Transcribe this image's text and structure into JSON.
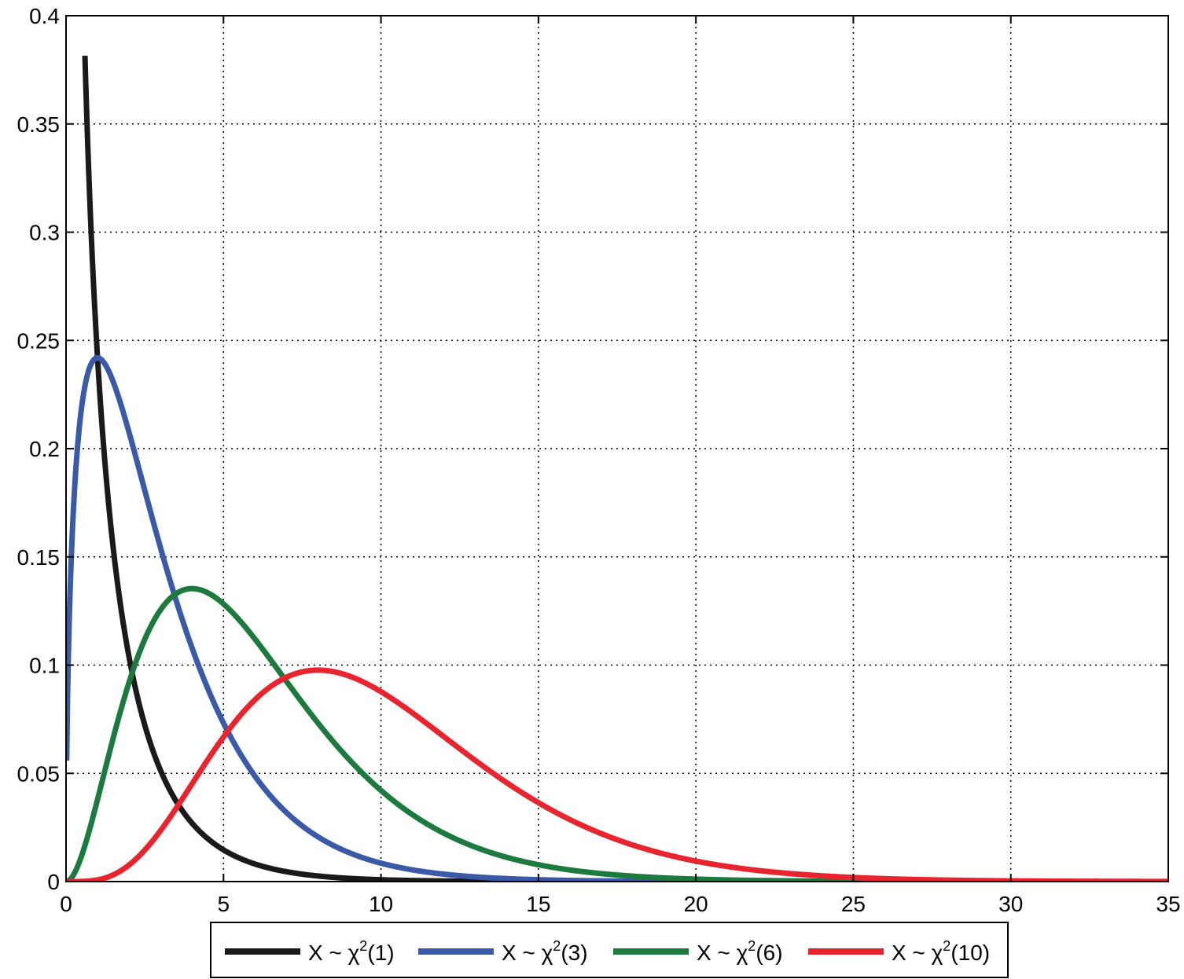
{
  "chart_data": {
    "type": "line",
    "xlim": [
      0,
      35
    ],
    "ylim": [
      0,
      0.4
    ],
    "grid": true,
    "legend_position": "bottom-outside",
    "x_ticks": [
      "0",
      "5",
      "10",
      "15",
      "20",
      "25",
      "30",
      "35"
    ],
    "y_ticks": [
      "0",
      "0.05",
      "0.1",
      "0.15",
      "0.2",
      "0.25",
      "0.3",
      "0.35",
      "0.4"
    ],
    "series": [
      {
        "name": "X ~ χ²(1)",
        "label_prefix": "X ~ χ",
        "label_sup": "2",
        "label_suffix": "(1)",
        "k": 1,
        "color": "#1a1a1a",
        "x": [
          0.65,
          0.8,
          1,
          1.5,
          2,
          3,
          4,
          5,
          7,
          10,
          15,
          20,
          35
        ],
        "y": [
          0.4,
          0.355,
          0.242,
          0.154,
          0.104,
          0.051,
          0.027,
          0.015,
          0.005,
          0.001,
          0.0001,
          0,
          0
        ]
      },
      {
        "name": "X ~ χ²(3)",
        "label_prefix": "X ~ χ",
        "label_sup": "2",
        "label_suffix": "(3)",
        "k": 3,
        "color": "#3a5aa8",
        "x": [
          0.05,
          0.2,
          0.5,
          1,
          2,
          3,
          4,
          5,
          7,
          10,
          15,
          20,
          35
        ],
        "y": [
          0.087,
          0.161,
          0.22,
          0.242,
          0.208,
          0.154,
          0.108,
          0.073,
          0.031,
          0.008,
          0.001,
          0,
          0
        ]
      },
      {
        "name": "X ~ χ²(6)",
        "label_prefix": "X ~ χ",
        "label_sup": "2",
        "label_suffix": "(6)",
        "k": 6,
        "color": "#1d7a3e",
        "x": [
          0,
          1,
          2,
          3,
          4,
          5,
          6,
          8,
          10,
          12,
          15,
          20,
          25,
          35
        ],
        "y": [
          0,
          0.038,
          0.092,
          0.126,
          0.135,
          0.128,
          0.112,
          0.073,
          0.042,
          0.022,
          0.008,
          0.001,
          0,
          0
        ]
      },
      {
        "name": "X ~ χ²(10)",
        "label_prefix": "X ~ χ",
        "label_sup": "2",
        "label_suffix": "(10)",
        "k": 10,
        "color": "#e8242f",
        "x": [
          0,
          2,
          4,
          6,
          8,
          10,
          12,
          15,
          20,
          25,
          30,
          35
        ],
        "y": [
          0,
          0.008,
          0.045,
          0.084,
          0.098,
          0.088,
          0.067,
          0.035,
          0.009,
          0.002,
          0,
          0
        ]
      }
    ]
  }
}
